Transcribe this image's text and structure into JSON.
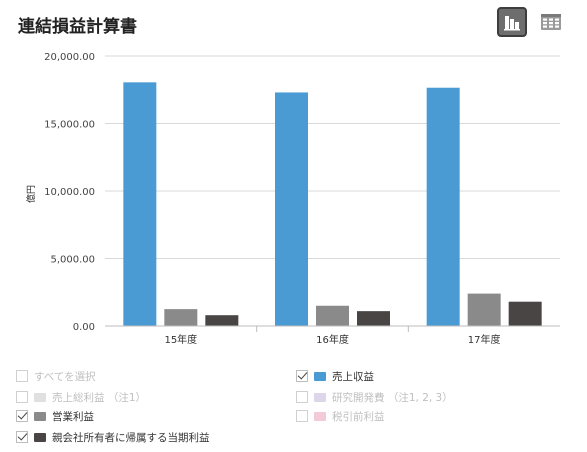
{
  "title": "連結損益計算書",
  "view_buttons": {
    "chart_icon": "bar-chart-icon",
    "table_icon": "table-grid-icon"
  },
  "chart_data": {
    "type": "bar",
    "categories": [
      "15年度",
      "16年度",
      "17年度"
    ],
    "ylabel": "億円",
    "ylim": [
      0,
      20000
    ],
    "yticks": [
      "0.00",
      "5,000.00",
      "10,000.00",
      "15,000.00",
      "20,000.00"
    ],
    "ytick_values": [
      0,
      5000,
      10000,
      15000,
      20000
    ],
    "grid": true,
    "series": [
      {
        "name": "売上収益",
        "color": "#4a9bd4",
        "values": [
          18050,
          17300,
          17650
        ]
      },
      {
        "name": "営業利益",
        "color": "#8a8a8a",
        "values": [
          1250,
          1500,
          2400
        ]
      },
      {
        "name": "親会社所有者に帰属する当期利益",
        "color": "#4a4545",
        "values": [
          800,
          1100,
          1800
        ]
      }
    ]
  },
  "legend": {
    "items": [
      {
        "label": "すべてを選択",
        "checked": false,
        "color": ""
      },
      {
        "label": "売上収益",
        "checked": true,
        "color": "#4a9bd4"
      },
      {
        "label": "売上総利益 （注1）",
        "checked": false,
        "color": "#e0e0e0"
      },
      {
        "label": "研究開発費 （注1, 2, 3）",
        "checked": false,
        "color": "#ddd5ea"
      },
      {
        "label": "営業利益",
        "checked": true,
        "color": "#8a8a8a"
      },
      {
        "label": "税引前利益",
        "checked": false,
        "color": "#f2cada"
      },
      {
        "label": "親会社所有者に帰属する当期利益",
        "checked": true,
        "color": "#4a4545"
      }
    ]
  }
}
